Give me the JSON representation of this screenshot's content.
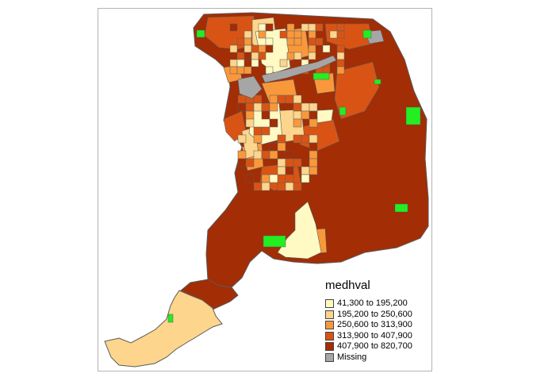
{
  "map": {
    "colors": {
      "c1": "#FFF9C3",
      "c2": "#FDD58C",
      "c3": "#F9983B",
      "c4": "#D95414",
      "c5": "#A32D05",
      "missing": "#A6A6A6",
      "park": "#22EE22",
      "boundary": "#5A5A5A"
    }
  },
  "legend": {
    "title": "medhval",
    "items": [
      {
        "label": "41,300 to 195,200",
        "color": "#FFF9C3"
      },
      {
        "label": "195,200 to 250,600",
        "color": "#FDD58C"
      },
      {
        "label": "250,600 to 313,900",
        "color": "#F9983B"
      },
      {
        "label": "313,900 to 407,900",
        "color": "#D95414"
      },
      {
        "label": "407,900 to 820,700",
        "color": "#A32D05"
      },
      {
        "label": "Missing",
        "color": "#A6A6A6"
      }
    ]
  }
}
